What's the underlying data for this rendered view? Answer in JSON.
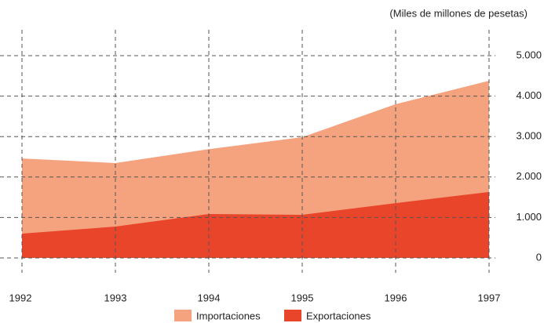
{
  "chart_data": {
    "type": "area",
    "subtitle": "(Miles de millones de pesetas)",
    "x": [
      1992,
      1993,
      1994,
      1995,
      1996,
      1997
    ],
    "series": [
      {
        "name": "Importaciones",
        "color": "#f5a27f",
        "values": [
          2460,
          2345,
          2690,
          2985,
          3800,
          4380
        ]
      },
      {
        "name": "Exportaciones",
        "color": "#e8452b",
        "values": [
          600,
          775,
          1085,
          1065,
          1355,
          1630
        ]
      }
    ],
    "xlim": [
      1992,
      1997
    ],
    "xticks": [
      1992,
      1993,
      1994,
      1995,
      1996,
      1997
    ],
    "ylim": [
      0,
      5000
    ],
    "yticks": [
      0,
      {
        "value": 1000,
        "label": "1.000"
      },
      {
        "value": 2000,
        "label": "2.000"
      },
      {
        "value": 3000,
        "label": "3.000"
      },
      {
        "value": 4000,
        "label": "4.000"
      },
      {
        "value": 5000,
        "label": "5.000"
      }
    ],
    "grid": true,
    "legend": "bottom"
  }
}
